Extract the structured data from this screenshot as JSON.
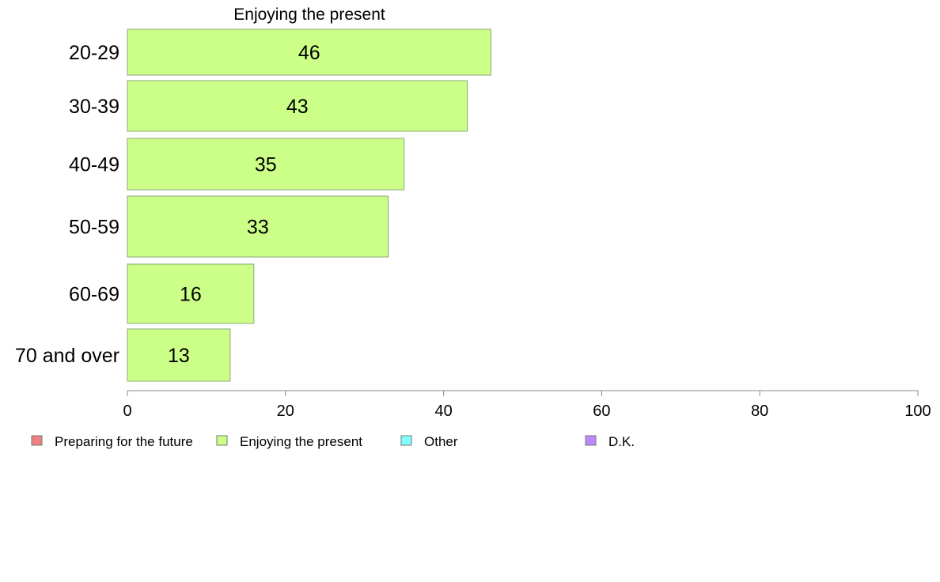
{
  "chart_data": {
    "type": "bar",
    "orientation": "horizontal",
    "title": "Enjoying the present",
    "categories": [
      "20-29",
      "30-39",
      "40-49",
      "50-59",
      "60-69",
      "70 and over"
    ],
    "series": [
      {
        "name": "Enjoying the present",
        "values": [
          46,
          43,
          35,
          33,
          16,
          13
        ],
        "color": "#ccff88"
      }
    ],
    "xlim": [
      0,
      100
    ],
    "xticks": [
      0,
      20,
      40,
      60,
      80,
      100
    ],
    "grid": false,
    "legend_position": "bottom-left",
    "legend": [
      {
        "label": "Preparing for the future",
        "color": "#f08080"
      },
      {
        "label": "Enjoying the present",
        "color": "#ccff88"
      },
      {
        "label": "Other",
        "color": "#80ffff"
      },
      {
        "label": "D.K.",
        "color": "#bb88ff"
      }
    ]
  }
}
